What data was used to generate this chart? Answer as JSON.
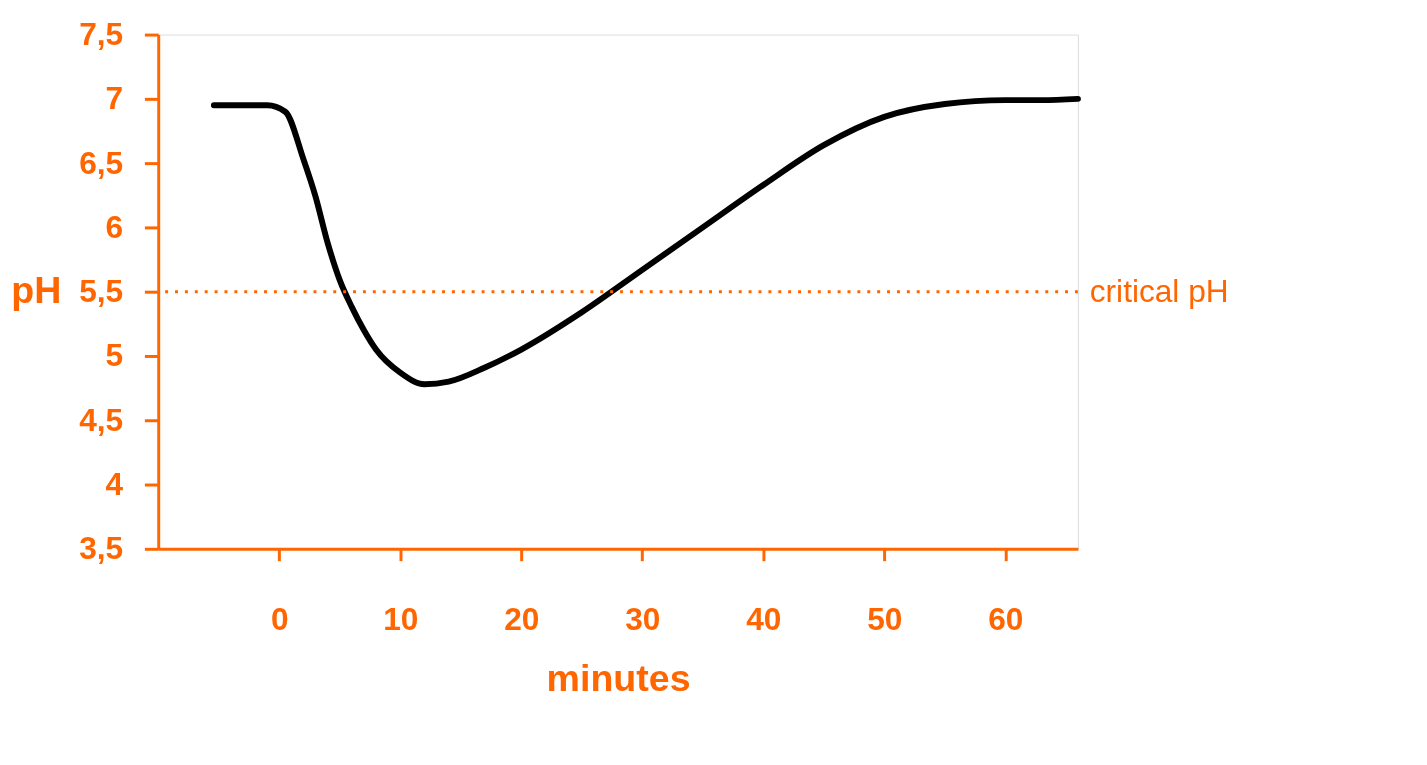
{
  "chart_data": {
    "type": "line",
    "xlabel": "minutes",
    "ylabel": "pH",
    "x": [
      -5.4,
      -1,
      0.5,
      2,
      3,
      4,
      5,
      6,
      7,
      8,
      10,
      12,
      14,
      17,
      20,
      25,
      30,
      35,
      40,
      45,
      50,
      55,
      60,
      63,
      66
    ],
    "series": [
      {
        "color": "#000000",
        "values": [
          6.95,
          6.95,
          6.9,
          6.53,
          6.24,
          5.88,
          5.59,
          5.38,
          5.2,
          5.05,
          4.87,
          4.78,
          4.8,
          4.91,
          5.05,
          5.34,
          5.67,
          6.0,
          6.33,
          6.64,
          6.86,
          6.96,
          6.99,
          6.99,
          7.0
        ]
      }
    ],
    "xlim": [
      -10,
      66
    ],
    "xticks": [
      0,
      10,
      20,
      30,
      40,
      50,
      60
    ],
    "ylim": [
      3.5,
      7.5
    ],
    "yticks": [
      {
        "value": 3.5,
        "label": "3,5"
      },
      {
        "value": 4,
        "label": "4"
      },
      {
        "value": 4.5,
        "label": "4,5"
      },
      {
        "value": 5,
        "label": "5"
      },
      {
        "value": 5.5,
        "label": "5,5"
      },
      {
        "value": 6,
        "label": "6"
      },
      {
        "value": 6.5,
        "label": "6,5"
      },
      {
        "value": 7,
        "label": "7"
      },
      {
        "value": 7.5,
        "label": "7,5"
      }
    ],
    "ref_lines": [
      {
        "axis": "y",
        "value": 5.5,
        "label": "critical pH",
        "color": "#ff6600",
        "line_style": "dotted"
      }
    ],
    "grid": false,
    "marker": "none",
    "line_style": "solid"
  }
}
